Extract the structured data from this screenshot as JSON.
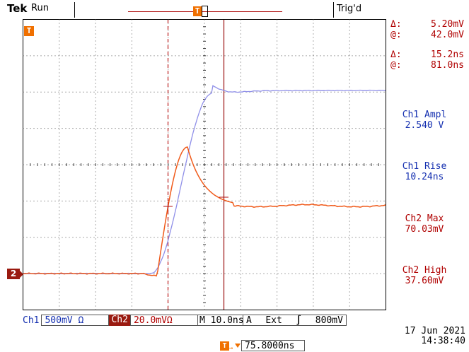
{
  "header": {
    "brand": "Tek",
    "run_state": "Run",
    "trigger_status": "Trig'd"
  },
  "cursor_readout": {
    "v_delta_label": "Δ:",
    "v_delta": "5.20mV",
    "v_at_label": "@:",
    "v_at": "42.0mV",
    "t_delta_label": "Δ:",
    "t_delta": "15.2ns",
    "t_at_label": "@:",
    "t_at": "81.0ns"
  },
  "measurements": [
    {
      "label": "Ch1 Ampl",
      "value": "2.540 V",
      "color": "#1530b0"
    },
    {
      "label": "Ch1 Rise",
      "value": "10.24ns",
      "color": "#1530b0"
    },
    {
      "label": "Ch2 Max",
      "value": "70.03mV",
      "color": "#b00000"
    },
    {
      "label": "Ch2 High",
      "value": "37.60mV",
      "color": "#b00000"
    }
  ],
  "status_bar": {
    "ch1_label": "Ch1",
    "ch1_scale": "500mV Ω",
    "ch2_label": "Ch2",
    "ch2_scale": "20.0mVΩ",
    "time_label": "M",
    "time_scale": "10.0ns",
    "trigger_mode": "A",
    "trigger_source": "Ext",
    "trigger_slope": "∫",
    "trigger_level": "800mV",
    "trigger_position": "75.8000ns",
    "date": "17 Jun  2021",
    "time": "14:38:40"
  },
  "markers": {
    "trigger_marker": "T",
    "ch2_ground_marker": "2"
  },
  "colors": {
    "ch1_trace": "#8f8fe8",
    "ch2_trace": "#f05a1a",
    "cursor": "#b01010",
    "accent_orange": "#f07000"
  }
}
